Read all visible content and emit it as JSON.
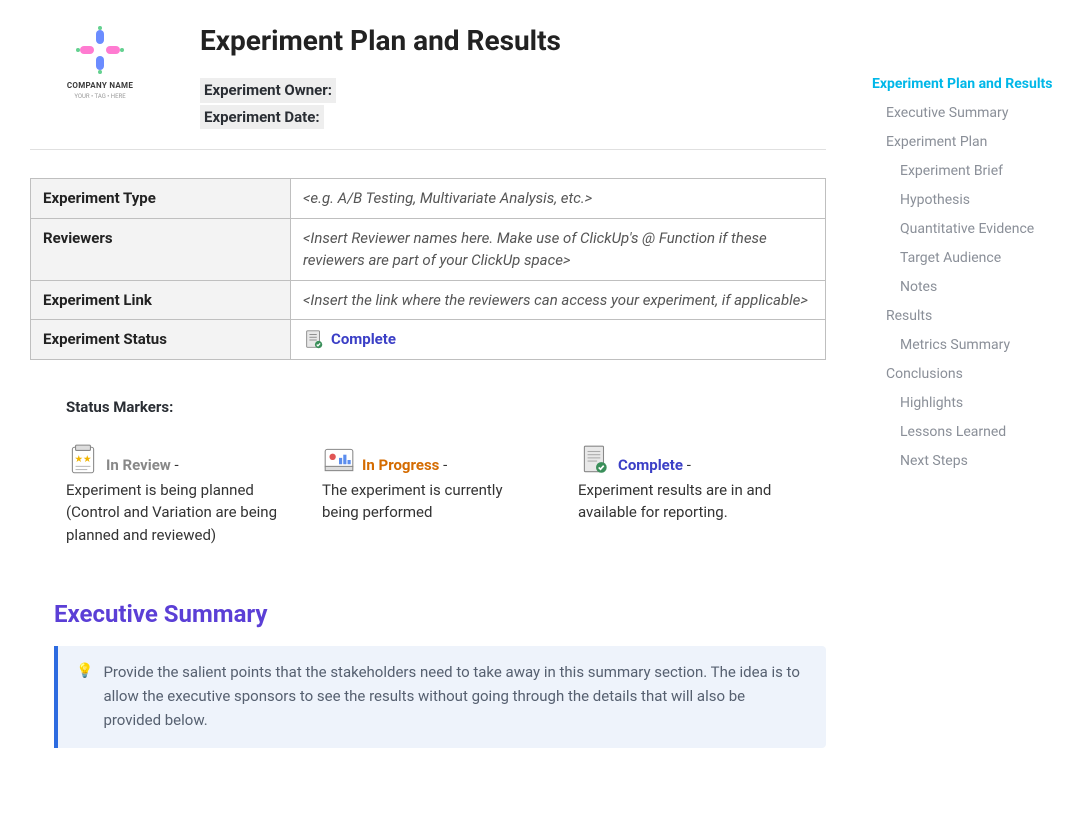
{
  "logo": {
    "company_line1": "COMPANY NAME",
    "company_line2": "YOUR • TAG • HERE"
  },
  "header": {
    "title": "Experiment Plan and Results",
    "owner_label": "Experiment Owner:",
    "date_label": "Experiment Date:"
  },
  "info_table": {
    "rows": [
      {
        "label": "Experiment Type",
        "value": "<e.g. A/B Testing, Multivariate Analysis, etc.>"
      },
      {
        "label": "Reviewers",
        "value": "<Insert Reviewer names here. Make use of ClickUp's @ Function if these reviewers are part of your ClickUp space>"
      },
      {
        "label": "Experiment Link",
        "value": "<Insert the link where the reviewers can access your experiment, if applicable>"
      }
    ],
    "status_row": {
      "label": "Experiment Status",
      "value": "Complete"
    }
  },
  "markers": {
    "title": "Status Markers:",
    "items": [
      {
        "name": "In Review",
        "sep": " - ",
        "desc": "Experiment is being planned (Control and Variation are being planned and reviewed)",
        "color_class": "m-inreview"
      },
      {
        "name": "In Progress",
        "sep": " - ",
        "desc": "The experiment is currently being performed",
        "color_class": "m-inprogress"
      },
      {
        "name": "Complete",
        "sep": " - ",
        "desc": "Experiment results are in and available for reporting.",
        "color_class": "m-complete"
      }
    ]
  },
  "exec_summary": {
    "heading": "Executive Summary",
    "callout": "Provide the salient points that the stakeholders need to take away in this summary section. The idea is to allow the executive sponsors to see the results without going through the details that will also be provided below."
  },
  "toc": [
    {
      "label": "Experiment Plan and Results",
      "level": 0,
      "active": true
    },
    {
      "label": "Executive Summary",
      "level": 1
    },
    {
      "label": "Experiment Plan",
      "level": 1
    },
    {
      "label": "Experiment Brief",
      "level": 2
    },
    {
      "label": "Hypothesis",
      "level": 2
    },
    {
      "label": "Quantitative Evidence",
      "level": 2
    },
    {
      "label": "Target Audience",
      "level": 2
    },
    {
      "label": "Notes",
      "level": 2
    },
    {
      "label": "Results",
      "level": 1
    },
    {
      "label": "Metrics Summary",
      "level": 2
    },
    {
      "label": "Conclusions",
      "level": 1
    },
    {
      "label": "Highlights",
      "level": 2
    },
    {
      "label": "Lessons Learned",
      "level": 2
    },
    {
      "label": "Next Steps",
      "level": 2
    }
  ],
  "colors": {
    "accent_link": "#00b7e8",
    "heading_purple": "#5b3fd6",
    "status_blue": "#3b3fc6",
    "inprogress": "#d46b00",
    "callout_bg": "#eef3fb",
    "callout_border": "#2d6be0"
  }
}
